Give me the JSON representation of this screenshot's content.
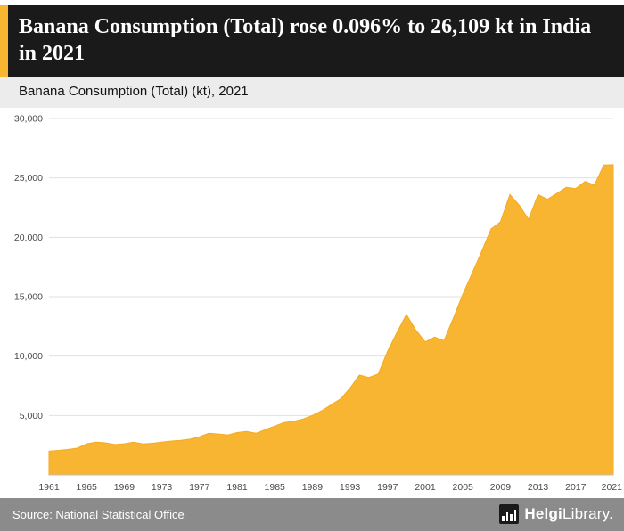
{
  "colors": {
    "accent": "#f8b532",
    "header_bg": "#1a1a1a",
    "subtitle_bg": "#ececec",
    "footer_bg": "#8b8b8b",
    "grid": "#e0e0e0",
    "axis": "#bfbfbf",
    "tick_text": "#4a4a4a"
  },
  "header": {
    "title": "Banana Consumption (Total) rose 0.096% to 26,109 kt in India in 2021",
    "subtitle": "Banana Consumption (Total) (kt), 2021"
  },
  "footer": {
    "source": "Source: National Statistical Office",
    "brand_bold": "Helgi",
    "brand_regular": "Library."
  },
  "chart_data": {
    "type": "area",
    "title": "Banana Consumption (Total) (kt), 2021",
    "xlabel": "",
    "ylabel": "",
    "ylim": [
      0,
      30000
    ],
    "yticks": [
      5000,
      10000,
      15000,
      20000,
      25000,
      30000
    ],
    "xticks": [
      1961,
      1965,
      1969,
      1973,
      1977,
      1981,
      1985,
      1989,
      1993,
      1997,
      2001,
      2005,
      2009,
      2013,
      2017,
      2021
    ],
    "grid": true,
    "legend": "none",
    "fill_color": "#f8b532",
    "edge_color": "#f3ab22",
    "x": [
      1961,
      1962,
      1963,
      1964,
      1965,
      1966,
      1967,
      1968,
      1969,
      1970,
      1971,
      1972,
      1973,
      1974,
      1975,
      1976,
      1977,
      1978,
      1979,
      1980,
      1981,
      1982,
      1983,
      1984,
      1985,
      1986,
      1987,
      1988,
      1989,
      1990,
      1991,
      1992,
      1993,
      1994,
      1995,
      1996,
      1997,
      1998,
      1999,
      2000,
      2001,
      2002,
      2003,
      2004,
      2005,
      2006,
      2007,
      2008,
      2009,
      2010,
      2011,
      2012,
      2013,
      2014,
      2015,
      2016,
      2017,
      2018,
      2019,
      2020,
      2021
    ],
    "values": [
      2000,
      2060,
      2140,
      2250,
      2620,
      2760,
      2700,
      2560,
      2620,
      2760,
      2610,
      2660,
      2760,
      2850,
      2910,
      3010,
      3210,
      3500,
      3440,
      3360,
      3560,
      3650,
      3500,
      3810,
      4110,
      4400,
      4510,
      4700,
      5000,
      5400,
      5900,
      6400,
      7300,
      8400,
      8200,
      8500,
      10400,
      12000,
      13500,
      12200,
      11200,
      11600,
      11300,
      13200,
      15200,
      17000,
      18800,
      20700,
      21300,
      23600,
      22700,
      21500,
      23600,
      23200,
      23700,
      24200,
      24100,
      24700,
      24400,
      26084,
      26109
    ]
  }
}
